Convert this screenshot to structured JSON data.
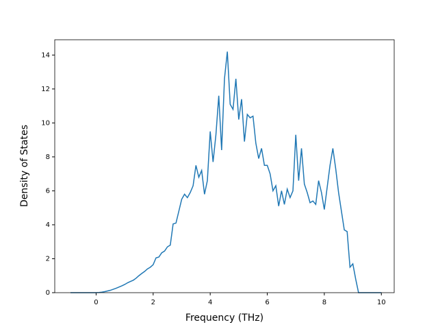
{
  "chart_data": {
    "type": "line",
    "xlabel": "Frequency (THz)",
    "ylabel": "Density of States",
    "x": [
      -0.9,
      -0.8,
      -0.7,
      -0.6,
      -0.5,
      -0.4,
      -0.3,
      -0.2,
      -0.1,
      0.0,
      0.1,
      0.2,
      0.3,
      0.4,
      0.5,
      0.6,
      0.7,
      0.8,
      0.9,
      1.0,
      1.1,
      1.2,
      1.3,
      1.4,
      1.5,
      1.6,
      1.7,
      1.8,
      1.9,
      2.0,
      2.1,
      2.2,
      2.3,
      2.4,
      2.5,
      2.6,
      2.7,
      2.8,
      2.9,
      3.0,
      3.1,
      3.2,
      3.3,
      3.4,
      3.5,
      3.6,
      3.7,
      3.8,
      3.9,
      4.0,
      4.1,
      4.2,
      4.3,
      4.4,
      4.5,
      4.6,
      4.7,
      4.8,
      4.9,
      5.0,
      5.1,
      5.2,
      5.3,
      5.4,
      5.5,
      5.6,
      5.7,
      5.8,
      5.9,
      6.0,
      6.1,
      6.2,
      6.3,
      6.4,
      6.5,
      6.6,
      6.7,
      6.8,
      6.9,
      7.0,
      7.1,
      7.2,
      7.3,
      7.4,
      7.5,
      7.6,
      7.7,
      7.8,
      7.9,
      8.0,
      8.1,
      8.2,
      8.3,
      8.4,
      8.5,
      8.6,
      8.7,
      8.8,
      8.9,
      9.0,
      9.1,
      9.2,
      9.3,
      9.4,
      9.5,
      9.6,
      9.7,
      9.8,
      9.9,
      10.0
    ],
    "series": [
      {
        "color": "#1f77b4",
        "values": [
          0,
          0,
          0,
          0,
          0,
          0,
          0,
          0,
          0,
          0,
          0.01,
          0.03,
          0.06,
          0.1,
          0.14,
          0.2,
          0.26,
          0.33,
          0.4,
          0.48,
          0.58,
          0.66,
          0.73,
          0.85,
          1.0,
          1.13,
          1.25,
          1.4,
          1.5,
          1.65,
          2.05,
          2.1,
          2.35,
          2.45,
          2.7,
          2.8,
          4.05,
          4.1,
          4.8,
          5.5,
          5.8,
          5.6,
          5.9,
          6.3,
          7.5,
          6.8,
          7.2,
          5.8,
          6.6,
          9.5,
          7.7,
          9.3,
          11.6,
          8.4,
          12.6,
          14.2,
          11.1,
          10.8,
          12.6,
          10.2,
          11.4,
          8.9,
          10.5,
          10.3,
          10.4,
          8.8,
          7.9,
          8.5,
          7.5,
          7.5,
          7.0,
          6.0,
          6.3,
          5.1,
          6.0,
          5.2,
          6.1,
          5.6,
          6.0,
          9.3,
          6.6,
          8.5,
          6.4,
          5.9,
          5.3,
          5.4,
          5.2,
          6.6,
          5.9,
          4.9,
          6.2,
          7.5,
          8.5,
          7.3,
          5.9,
          4.8,
          3.7,
          3.6,
          1.5,
          1.7,
          0.8,
          0,
          0,
          0,
          0,
          0,
          0,
          0,
          0,
          0
        ]
      }
    ],
    "xlim": [
      -1.45,
      10.45
    ],
    "ylim": [
      0,
      14.9
    ],
    "xticks": [
      0,
      2,
      4,
      6,
      8,
      10
    ],
    "yticks": [
      0,
      2,
      4,
      6,
      8,
      10,
      12,
      14
    ]
  }
}
